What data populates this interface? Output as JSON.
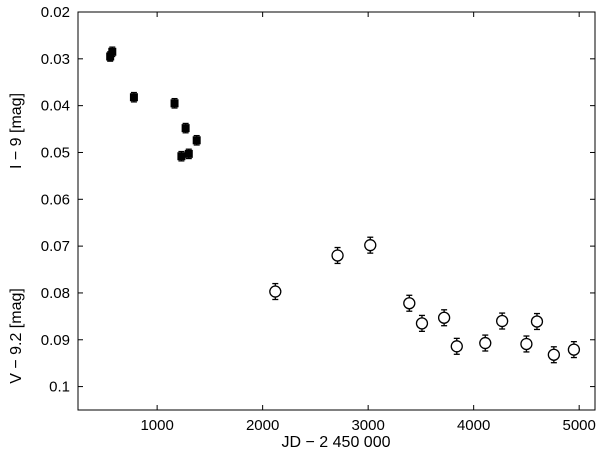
{
  "chart_data": {
    "type": "scatter",
    "title": "",
    "xlabel": "JD − 2 450 000",
    "ylabel_upper": "I − 9  [mag]",
    "ylabel_lower": "V − 9.2  [mag]",
    "xlim": [
      250,
      5150
    ],
    "ylim": [
      0.02,
      0.105
    ],
    "y_inverted": true,
    "grid": false,
    "x_ticks": [
      {
        "value": 1000,
        "label": "1000"
      },
      {
        "value": 2000,
        "label": "2000"
      },
      {
        "value": 3000,
        "label": "3000"
      },
      {
        "value": 4000,
        "label": "4000"
      },
      {
        "value": 5000,
        "label": "5000"
      }
    ],
    "y_ticks": [
      {
        "value": 0.02,
        "label": "0.02"
      },
      {
        "value": 0.03,
        "label": "0.03"
      },
      {
        "value": 0.04,
        "label": "0.04"
      },
      {
        "value": 0.05,
        "label": "0.05"
      },
      {
        "value": 0.06,
        "label": "0.06"
      },
      {
        "value": 0.07,
        "label": "0.07"
      },
      {
        "value": 0.08,
        "label": "0.08"
      },
      {
        "value": 0.09,
        "label": "0.09"
      },
      {
        "value": 0.1,
        "label": "0.1"
      }
    ],
    "series": [
      {
        "marker": "filled-square",
        "color": "#000000",
        "points": [
          {
            "x": 555,
            "y": 0.0295,
            "err": 0.001
          },
          {
            "x": 575,
            "y": 0.0285,
            "err": 0.001
          },
          {
            "x": 780,
            "y": 0.0382,
            "err": 0.001
          },
          {
            "x": 1165,
            "y": 0.0395,
            "err": 0.001
          },
          {
            "x": 1230,
            "y": 0.0508,
            "err": 0.001
          },
          {
            "x": 1270,
            "y": 0.0448,
            "err": 0.001
          },
          {
            "x": 1300,
            "y": 0.0503,
            "err": 0.001
          },
          {
            "x": 1375,
            "y": 0.0474,
            "err": 0.001
          }
        ]
      },
      {
        "marker": "open-circle",
        "color": "#000000",
        "points": [
          {
            "x": 2120,
            "y": 0.0797,
            "err": 0.0017
          },
          {
            "x": 2710,
            "y": 0.072,
            "err": 0.0017
          },
          {
            "x": 3020,
            "y": 0.0698,
            "err": 0.0017
          },
          {
            "x": 3390,
            "y": 0.0822,
            "err": 0.0017
          },
          {
            "x": 3510,
            "y": 0.0865,
            "err": 0.0017
          },
          {
            "x": 3720,
            "y": 0.0853,
            "err": 0.0017
          },
          {
            "x": 3840,
            "y": 0.0914,
            "err": 0.0017
          },
          {
            "x": 4110,
            "y": 0.0907,
            "err": 0.0017
          },
          {
            "x": 4270,
            "y": 0.086,
            "err": 0.0017
          },
          {
            "x": 4500,
            "y": 0.0909,
            "err": 0.0017
          },
          {
            "x": 4600,
            "y": 0.0861,
            "err": 0.0017
          },
          {
            "x": 4760,
            "y": 0.0932,
            "err": 0.0017
          },
          {
            "x": 4950,
            "y": 0.0921,
            "err": 0.0017
          }
        ]
      }
    ]
  }
}
